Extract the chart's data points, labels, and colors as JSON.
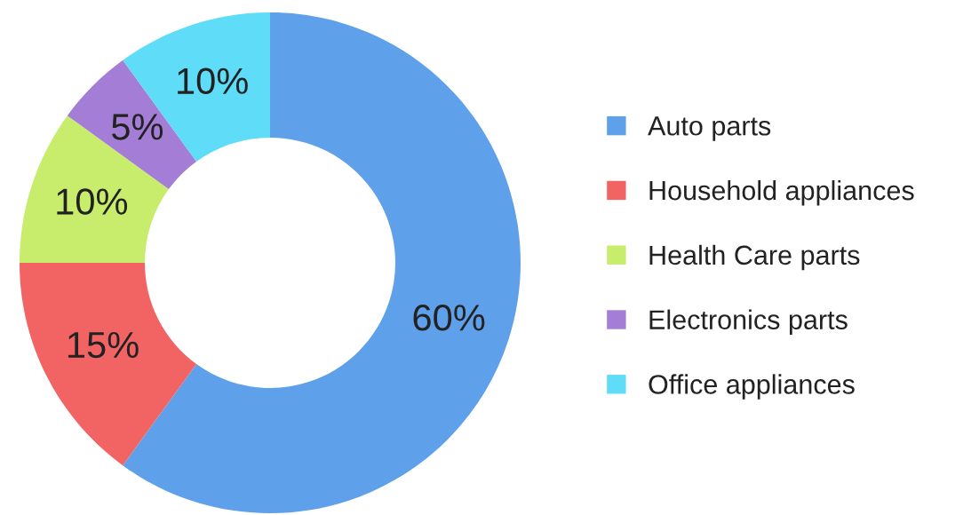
{
  "chart_data": {
    "type": "donut",
    "categories": [
      "Auto parts",
      "Household appliances",
      "Health Care parts",
      "Electronics parts",
      "Office appliances"
    ],
    "values": [
      60,
      15,
      10,
      5,
      10
    ],
    "colors": [
      "#5fa0ea",
      "#f26464",
      "#c8ec6c",
      "#a47ed6",
      "#5fdcf8"
    ],
    "value_labels": [
      "60%",
      "15%",
      "10%",
      "5%",
      "10%"
    ],
    "legend": "right"
  }
}
